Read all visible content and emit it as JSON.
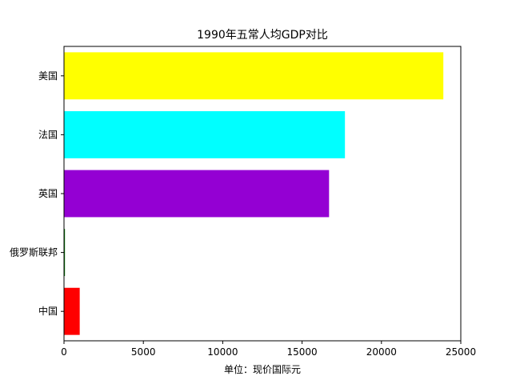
{
  "chart_data": {
    "type": "bar",
    "orientation": "horizontal",
    "title": "1990年五常人均GDP对比",
    "xlabel": "单位：现价国际元",
    "ylabel": "",
    "categories": [
      "中国",
      "俄罗斯联邦",
      "英国",
      "法国",
      "美国"
    ],
    "values": [
      990,
      60,
      16700,
      17700,
      23900
    ],
    "colors": [
      "#ff0000",
      "#008000",
      "#9400d3",
      "#00ffff",
      "#ffff00"
    ],
    "xlim": [
      0,
      25000
    ],
    "xticks": [
      0,
      5000,
      10000,
      15000,
      20000,
      25000
    ],
    "grid": false
  }
}
